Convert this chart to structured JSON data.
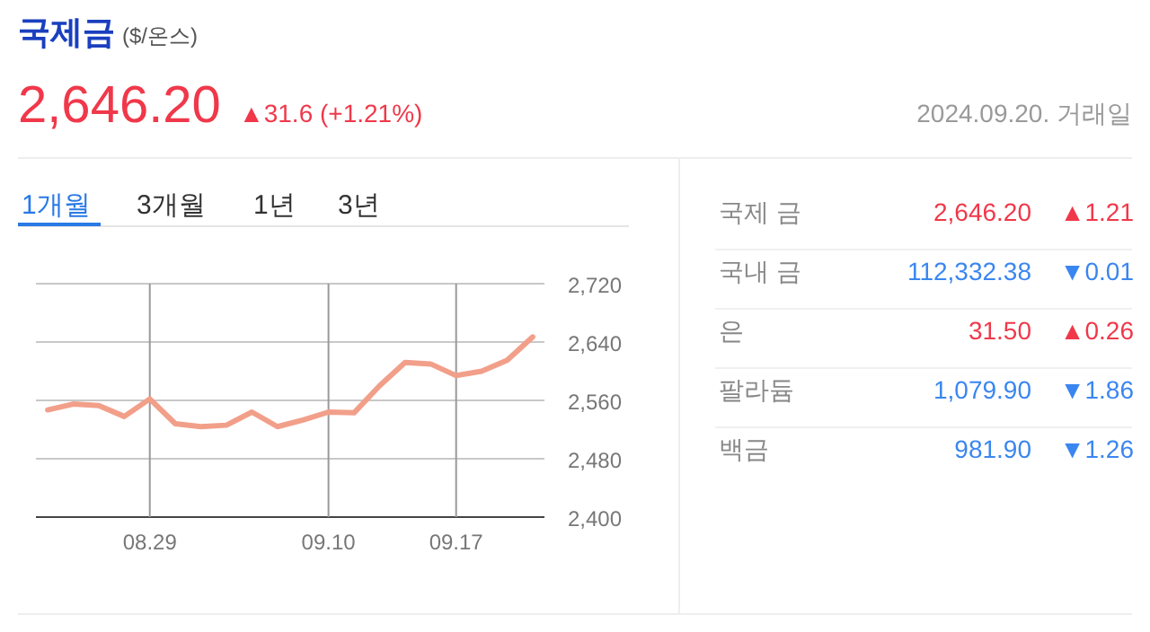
{
  "chart_data": [
    {
      "type": "line",
      "title": "국제금",
      "subtitle": "($/온스)",
      "annotations": [
        "2,646.20",
        "▲31.6 (+1.21%)",
        "2024.09.20. 거래일",
        "1개월",
        "3개월",
        "1년",
        "3년"
      ],
      "categories": [
        null,
        null,
        null,
        null,
        "08.29",
        null,
        null,
        null,
        null,
        null,
        null,
        "09.10",
        null,
        null,
        null,
        null,
        "09.17",
        null,
        null,
        null
      ],
      "series": [
        {
          "color": "#f29f8a",
          "values": [
            2547,
            2555,
            2553,
            2538,
            2562,
            2528,
            2524,
            2526,
            2544,
            2524,
            2533,
            2544,
            2543,
            2580,
            2612,
            2610,
            2594,
            2600,
            2615,
            2647
          ]
        }
      ],
      "ylim": [
        2400,
        2720
      ],
      "yticks": [
        {
          "value": 2400,
          "label": "2,400"
        },
        {
          "value": 2480,
          "label": "2,480"
        },
        {
          "value": 2560,
          "label": "2,560"
        },
        {
          "value": 2640,
          "label": "2,640"
        },
        {
          "value": 2720,
          "label": "2,720"
        }
      ],
      "grid": true,
      "marker": "none",
      "line_style": "solid"
    },
    {
      "type": "other",
      "categories": [
        "국제 금",
        "국내 금",
        "은",
        "팔라듐",
        "백금"
      ],
      "colors": [
        "#f0384a",
        "#3a86f0",
        "#f0384a",
        "#3a86f0",
        "#3a86f0"
      ],
      "series": [
        {
          "values": [
            2646.2,
            112332.38,
            31.5,
            1079.9,
            981.9
          ],
          "value_labels": [
            "2,646.20",
            "112,332.38",
            "31.50",
            "1,079.90",
            "981.90"
          ]
        },
        {
          "values": [
            1.21,
            0.01,
            0.26,
            1.86,
            1.26
          ],
          "value_labels": [
            "▲1.21",
            "▼0.01",
            "▲0.26",
            "▼1.86",
            "▼1.26"
          ]
        }
      ]
    }
  ]
}
